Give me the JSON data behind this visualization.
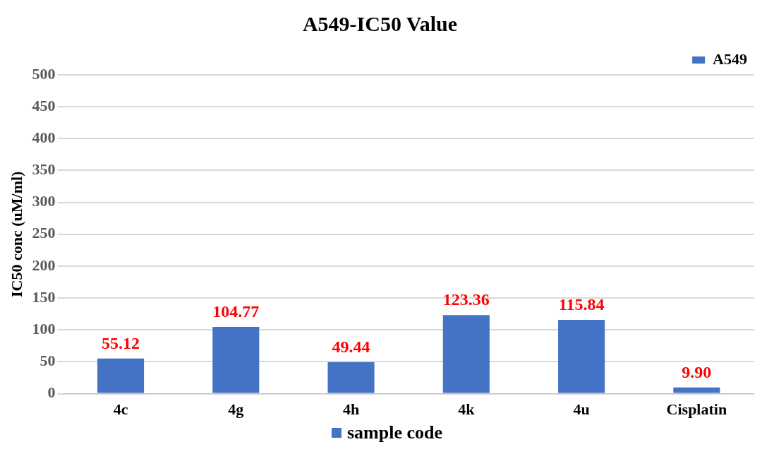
{
  "chart_data": {
    "type": "bar",
    "title": "A549-IC50 Value",
    "xlabel": "sample code",
    "ylabel": "IC50 conc (uM/ml)",
    "categories": [
      "4c",
      "4g",
      "4h",
      "4k",
      "4u",
      "Cisplatin"
    ],
    "series": [
      {
        "name": "A549",
        "color": "#4472c4",
        "values": [
          55.12,
          104.77,
          49.44,
          123.36,
          115.84,
          9.9
        ],
        "value_labels": [
          "55.12",
          "104.77",
          "49.44",
          "123.36",
          "115.84",
          "9.90"
        ]
      }
    ],
    "ylim": [
      0,
      500
    ],
    "yticks": [
      0,
      50,
      100,
      150,
      200,
      250,
      300,
      350,
      400,
      450,
      500
    ],
    "grid": "y",
    "legend": "top right"
  }
}
